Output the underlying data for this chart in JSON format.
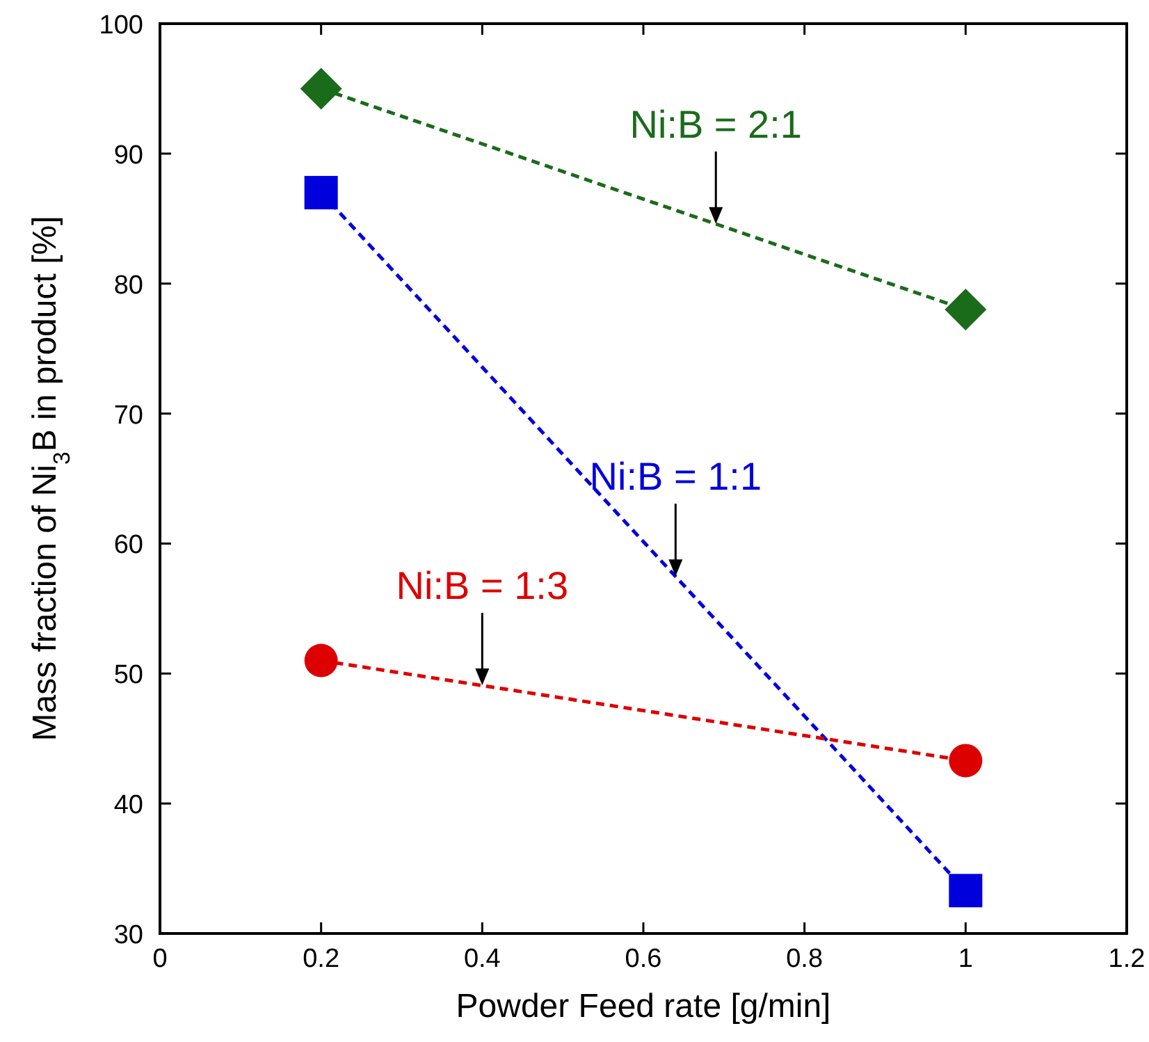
{
  "chart_data": {
    "type": "line",
    "xlabel": "Powder Feed rate [g/min]",
    "ylabel": "Mass fraction of Ni$_{3}$B in product [%]",
    "x": [
      0.2,
      1
    ],
    "series": [
      {
        "color": "#1a6b1a",
        "values": [
          95,
          78
        ],
        "marker": "diamond"
      },
      {
        "color": "#0000dd",
        "values": [
          87,
          33.3
        ],
        "marker": "square"
      },
      {
        "color": "#dd0000",
        "values": [
          51,
          43.3
        ],
        "marker": "circle"
      }
    ],
    "annotations": [
      {
        "text": "Ni:B = 2:1",
        "x": 0.69,
        "y": 84.6
      },
      {
        "text": "Ni:B = 1:1",
        "x": 0.64,
        "y": 57.5
      },
      {
        "text": "Ni:B = 1:3",
        "x": 0.4,
        "y": 49.1
      }
    ],
    "xlim": [
      0,
      1.2
    ],
    "xticks": [
      {
        "value": 0,
        "label": "0"
      },
      0.2,
      0.4,
      0.6,
      0.8,
      1,
      1.2
    ],
    "ylim": [
      30,
      100
    ],
    "yticks": [
      30,
      40,
      50,
      60,
      70,
      80,
      90,
      100
    ],
    "grid": false,
    "line_style": "dashed"
  }
}
